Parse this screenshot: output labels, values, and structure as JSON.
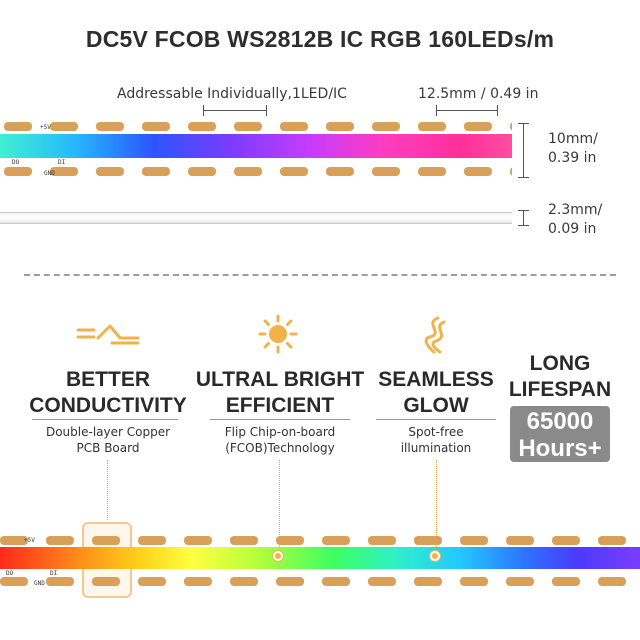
{
  "title": "DC5V FCOB WS2812B IC RGB 160LEDs/m",
  "top_strip": {
    "addressable_label": "Addressable Individually,1LED/IC",
    "pitch_label": "12.5mm / 0.49 in",
    "width_label_1": "10mm/",
    "width_label_2": "0.39 in",
    "thickness_label_1": "2.3mm/",
    "thickness_label_2": "0.09 in",
    "pcb_top_text": "+5V",
    "pcb_di_text": "DI",
    "pcb_do_text": "DO",
    "pcb_gnd_text": "GND"
  },
  "features": [
    {
      "icon": "conductivity-icon",
      "title_1": "BETTER",
      "title_2": "CONDUCTIVITY",
      "sub_1": "Double-layer Copper",
      "sub_2": "PCB Board"
    },
    {
      "icon": "sun-icon",
      "title_1": "ULTRAL BRIGHT",
      "title_2": "EFFICIENT",
      "sub_1": "Flip Chip-on-board",
      "sub_2": "(FCOB)Technology"
    },
    {
      "icon": "wave-icon",
      "title_1": "SEAMLESS",
      "title_2": "GLOW",
      "sub_1": "Spot-free",
      "sub_2": "illumination"
    },
    {
      "icon": "clock-icon",
      "title_1": "LONG",
      "title_2": "LIFESPAN",
      "badge_1": "65000",
      "badge_2": "Hours+"
    }
  ],
  "colors": {
    "accent": "#f2b24a",
    "badge_bg": "#8a8a8a",
    "pad": "#d9a05a"
  }
}
